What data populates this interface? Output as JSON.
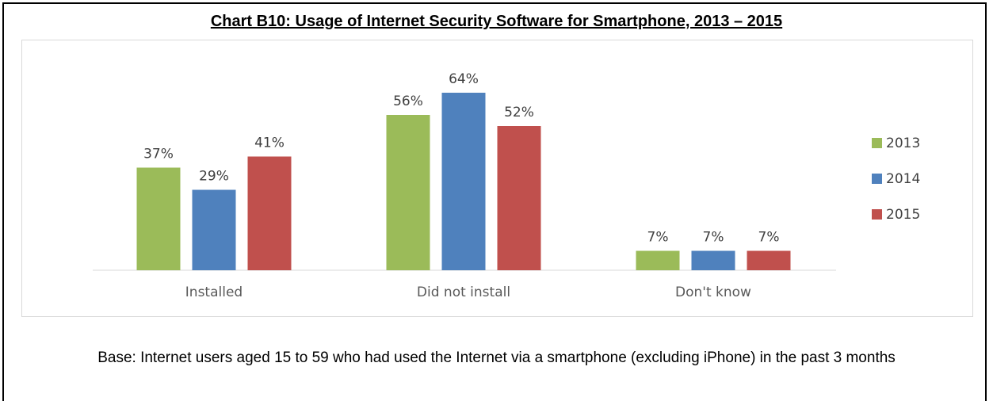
{
  "chart_data": {
    "type": "bar",
    "title": "Chart B10: Usage of Internet Security Software for Smartphone, 2013 – 2015",
    "categories": [
      "Installed",
      "Did not install",
      "Don't know"
    ],
    "series": [
      {
        "name": "2013",
        "color": "#9bbb59",
        "values": [
          37,
          56,
          7
        ],
        "labels": [
          "37%",
          "56%",
          "7%"
        ]
      },
      {
        "name": "2014",
        "color": "#4f81bd",
        "values": [
          29,
          64,
          7
        ],
        "labels": [
          "29%",
          "64%",
          "7%"
        ]
      },
      {
        "name": "2015",
        "color": "#c0504d",
        "values": [
          41,
          52,
          7
        ],
        "labels": [
          "41%",
          "52%",
          "7%"
        ]
      }
    ],
    "value_unit": "%",
    "ylim": [
      0,
      70
    ],
    "grid": false,
    "legend_position": "right"
  },
  "footnote": "Base: Internet users aged 15 to 59 who had used the Internet via a smartphone (excluding iPhone) in the past 3 months"
}
